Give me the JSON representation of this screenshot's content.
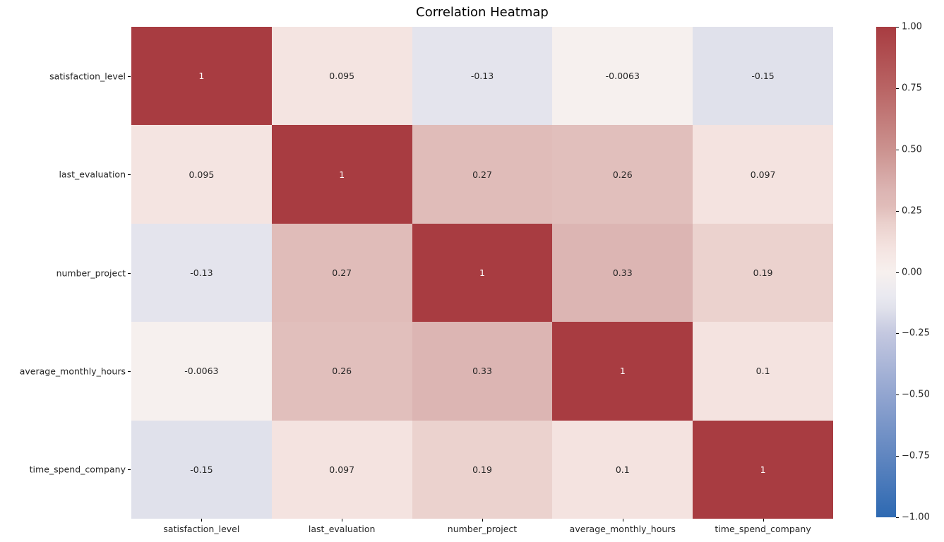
{
  "chart_data": {
    "type": "heatmap",
    "title": "Correlation Heatmap",
    "categories": [
      "satisfaction_level",
      "last_evaluation",
      "number_project",
      "average_monthly_hours",
      "time_spend_company"
    ],
    "values": [
      [
        1,
        0.095,
        -0.13,
        -0.0063,
        -0.15
      ],
      [
        0.095,
        1,
        0.27,
        0.26,
        0.097
      ],
      [
        -0.13,
        0.27,
        1,
        0.33,
        0.19
      ],
      [
        -0.0063,
        0.26,
        0.33,
        1,
        0.1
      ],
      [
        -0.15,
        0.097,
        0.19,
        0.1,
        1
      ]
    ],
    "annotations": [
      [
        "1",
        "0.095",
        "-0.13",
        "-0.0063",
        "-0.15"
      ],
      [
        "0.095",
        "1",
        "0.27",
        "0.26",
        "0.097"
      ],
      [
        "-0.13",
        "0.27",
        "1",
        "0.33",
        "0.19"
      ],
      [
        "-0.0063",
        "0.26",
        "0.33",
        "1",
        "0.1"
      ],
      [
        "-0.15",
        "0.097",
        "0.19",
        "0.1",
        "1"
      ]
    ],
    "colorbar": {
      "ticks": [
        "1.00",
        "0.75",
        "0.50",
        "0.25",
        "0.00",
        "−0.25",
        "−0.50",
        "−0.75",
        "−1.00"
      ],
      "range": [
        -1,
        1
      ],
      "position": "right"
    },
    "colormap": {
      "name": "vlag",
      "anchors": [
        [
          -1.0,
          "#2d69b2"
        ],
        [
          -0.75,
          "#6086c0"
        ],
        [
          -0.5,
          "#92a5d0"
        ],
        [
          -0.25,
          "#c4c8e0"
        ],
        [
          -0.15,
          "#e0e1eb"
        ],
        [
          -0.1,
          "#e9e9f0"
        ],
        [
          0.0,
          "#f7f0ee"
        ],
        [
          0.1,
          "#f4e3e0"
        ],
        [
          0.2,
          "#ead0cc"
        ],
        [
          0.27,
          "#e0bcb9"
        ],
        [
          0.33,
          "#dcb5b3"
        ],
        [
          0.5,
          "#cb928f"
        ],
        [
          0.75,
          "#b96464"
        ],
        [
          1.0,
          "#a83c41"
        ]
      ],
      "text_dark": "#262626",
      "text_light": "#ffffff",
      "light_text_threshold": 0.7
    },
    "grid": false,
    "xlabel": "",
    "ylabel": ""
  }
}
